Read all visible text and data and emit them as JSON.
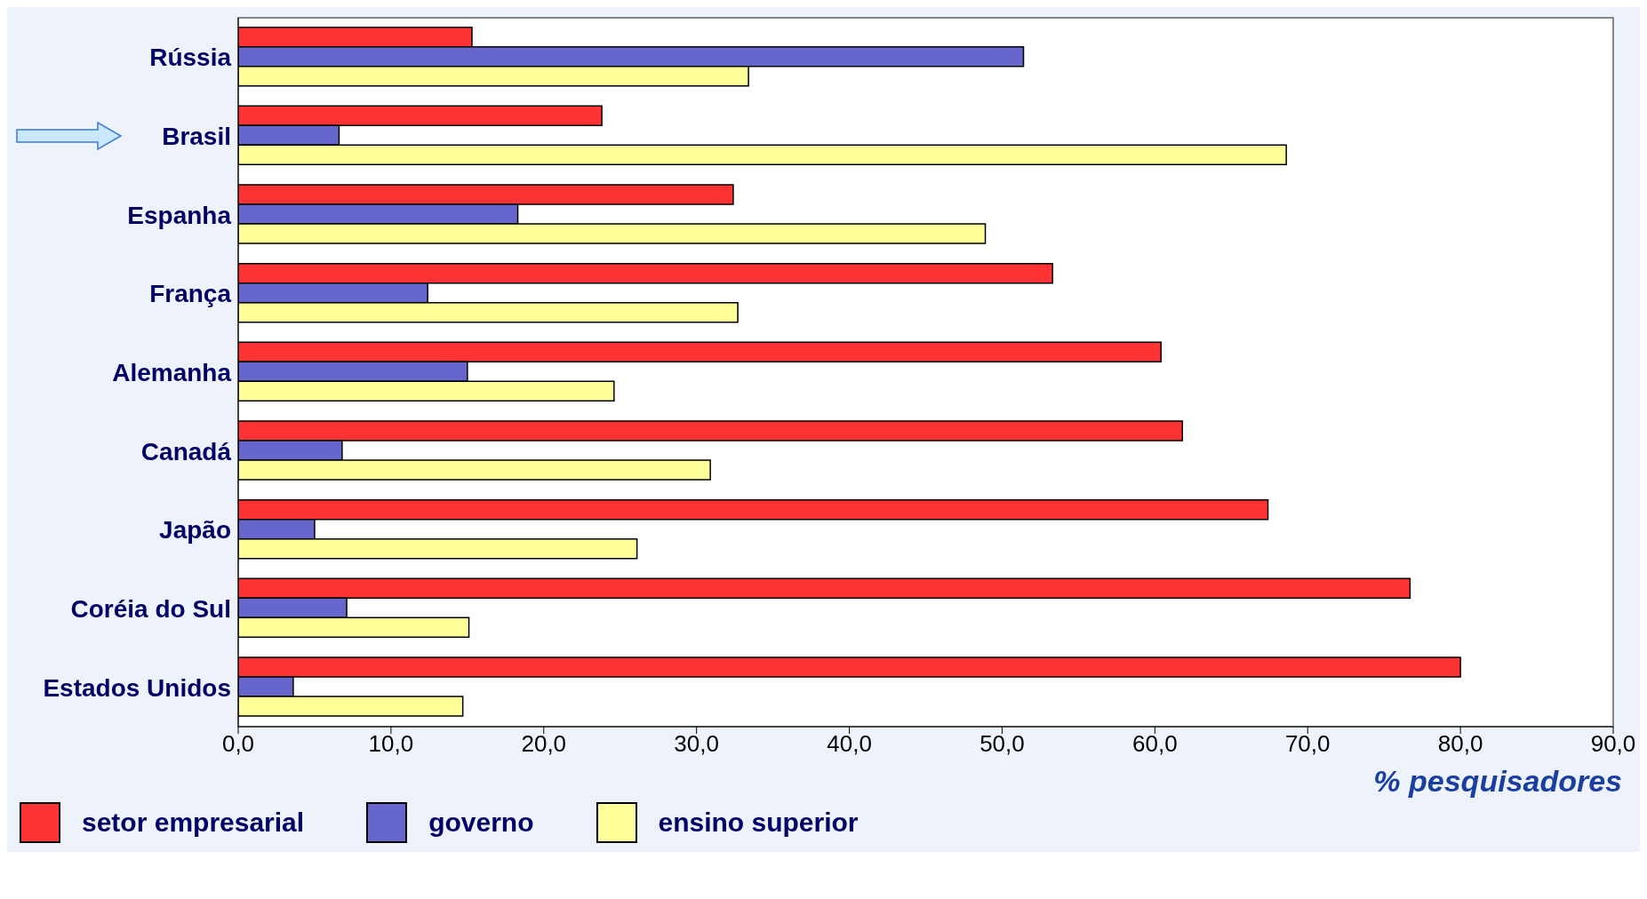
{
  "chart_data": {
    "type": "bar",
    "orientation": "horizontal",
    "xlabel": "% pesquisadores",
    "categories": [
      "Rússia",
      "Brasil",
      "Espanha",
      "França",
      "Alemanha",
      "Canadá",
      "Japão",
      "Coréia do Sul",
      "Estados Unidos"
    ],
    "series": [
      {
        "name": "setor empresarial",
        "color": "#ff3333",
        "values": [
          15.3,
          23.8,
          32.4,
          53.3,
          60.4,
          61.8,
          67.4,
          76.7,
          80.0
        ]
      },
      {
        "name": "governo",
        "color": "#6666cc",
        "values": [
          51.4,
          6.6,
          18.3,
          12.4,
          15.0,
          6.8,
          5.0,
          7.1,
          3.6
        ]
      },
      {
        "name": "ensino superior",
        "color": "#ffff99",
        "values": [
          33.4,
          68.6,
          48.9,
          32.7,
          24.6,
          30.9,
          26.1,
          15.1,
          14.7
        ]
      }
    ],
    "xlim": [
      0,
      90
    ],
    "xticks": [
      {
        "value": 0,
        "label": "0,0"
      },
      {
        "value": 10,
        "label": "10,0"
      },
      {
        "value": 20,
        "label": "20,0"
      },
      {
        "value": 30,
        "label": "30,0"
      },
      {
        "value": 40,
        "label": "40,0"
      },
      {
        "value": 50,
        "label": "50,0"
      },
      {
        "value": 60,
        "label": "60,0"
      },
      {
        "value": 70,
        "label": "70,0"
      },
      {
        "value": 80,
        "label": "80,0"
      },
      {
        "value": 90,
        "label": "90,0"
      }
    ],
    "legend": "bottom"
  }
}
